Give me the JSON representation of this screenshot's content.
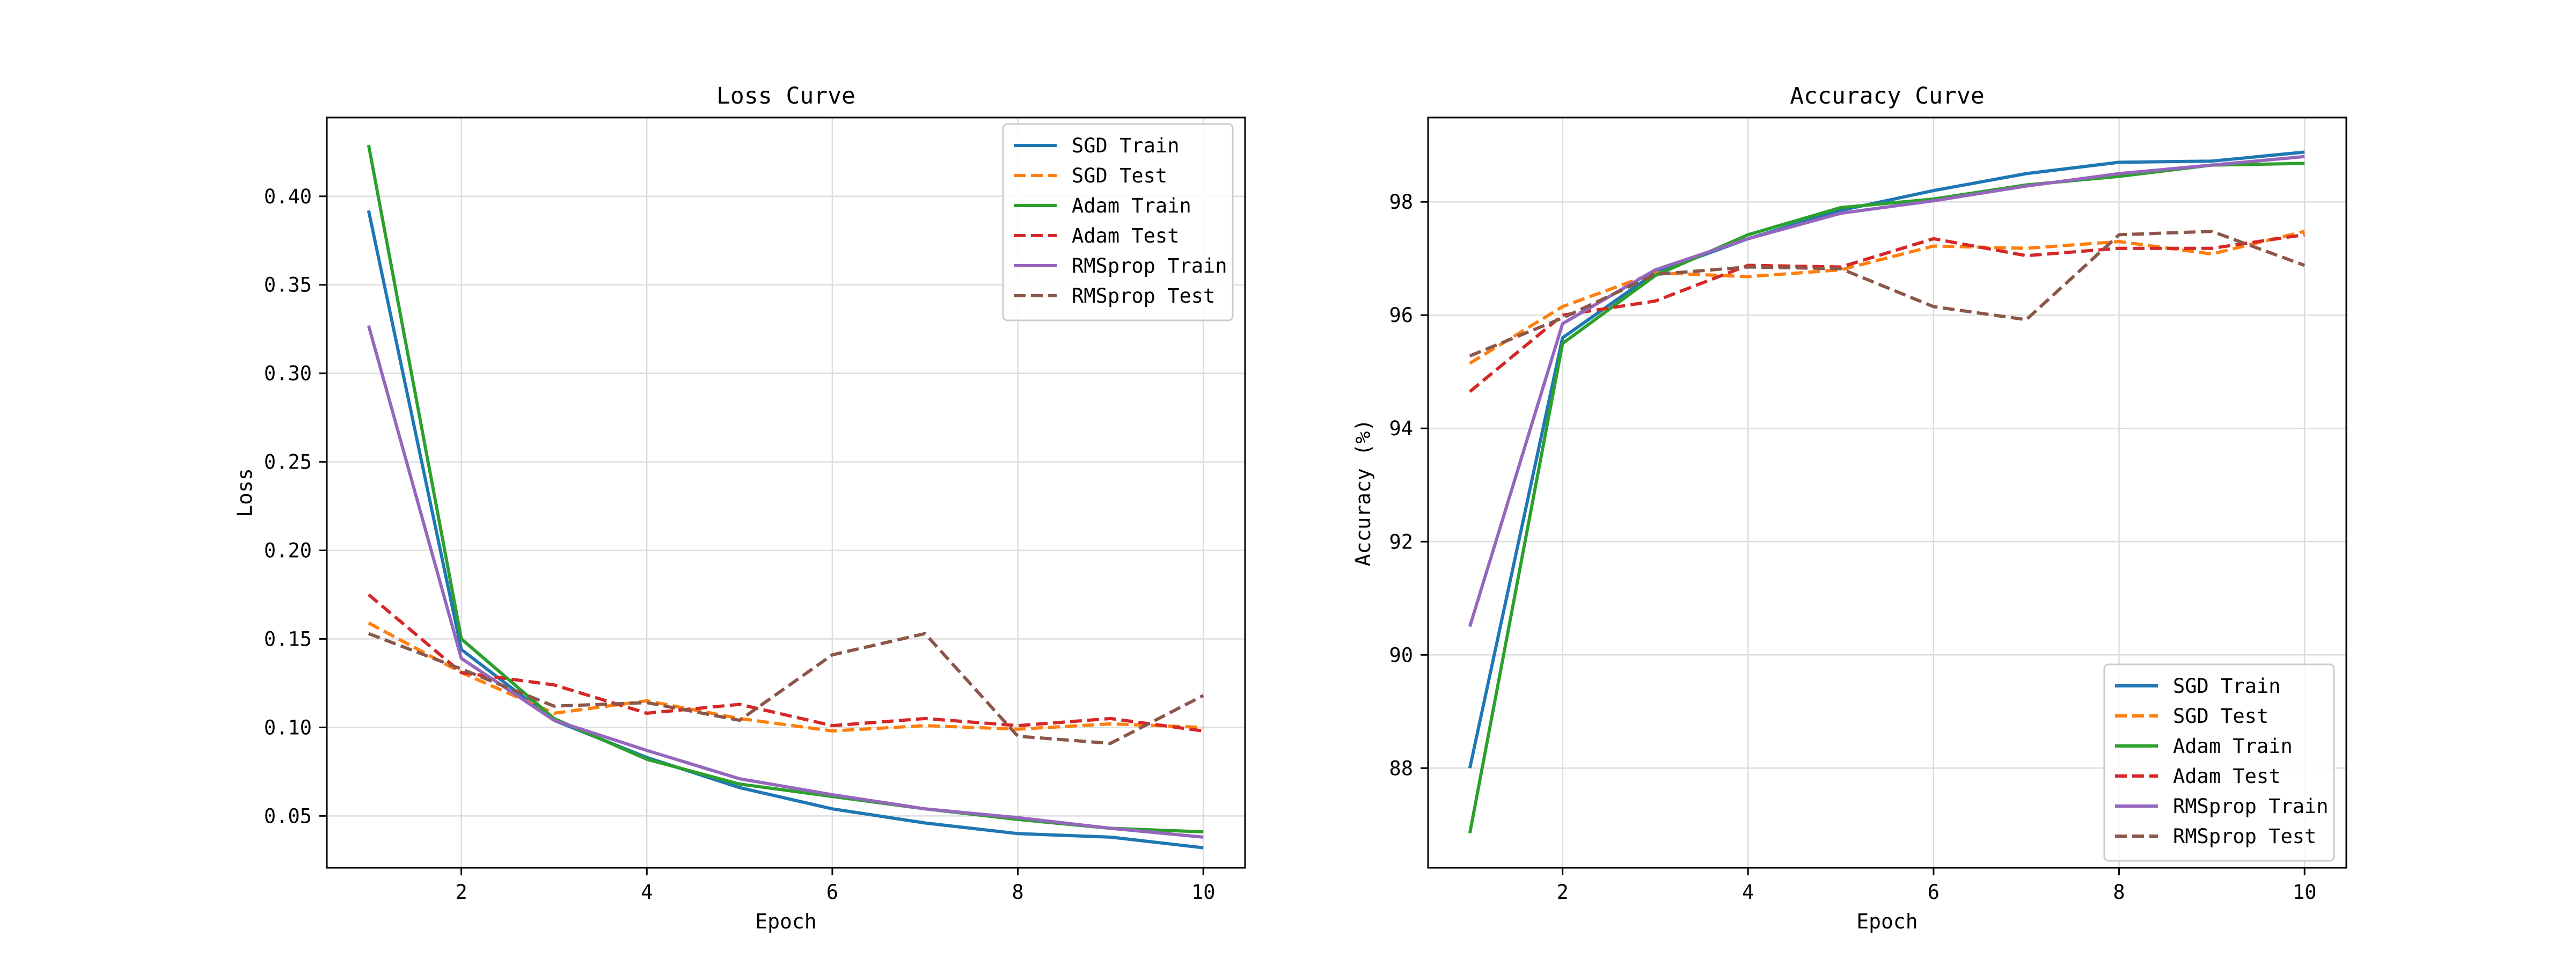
{
  "chart_data": [
    {
      "type": "line",
      "title": "Loss Curve",
      "xlabel": "Epoch",
      "ylabel": "Loss",
      "xlim": [
        0.55,
        10.45
      ],
      "ylim": [
        0.0207,
        0.4445
      ],
      "xticks": [
        2,
        4,
        6,
        8,
        10
      ],
      "xtick_labels": [
        "2",
        "4",
        "6",
        "8",
        "10"
      ],
      "yticks": [
        0.05,
        0.1,
        0.15,
        0.2,
        0.25,
        0.3,
        0.35,
        0.4
      ],
      "ytick_labels": [
        "0.05",
        "0.10",
        "0.15",
        "0.20",
        "0.25",
        "0.30",
        "0.35",
        "0.40"
      ],
      "grid": true,
      "legend_position": "top-right",
      "x": [
        1,
        2,
        3,
        4,
        5,
        6,
        7,
        8,
        9,
        10
      ],
      "series": [
        {
          "name": "SGD Train",
          "color": "#1f77b4",
          "style": "solid",
          "values": [
            0.392,
            0.144,
            0.104,
            0.083,
            0.066,
            0.054,
            0.046,
            0.04,
            0.038,
            0.032
          ]
        },
        {
          "name": "SGD Test",
          "color": "#ff7f0e",
          "style": "dashed",
          "values": [
            0.159,
            0.131,
            0.108,
            0.115,
            0.105,
            0.098,
            0.101,
            0.099,
            0.102,
            0.1
          ]
        },
        {
          "name": "Adam Train",
          "color": "#2ca02c",
          "style": "solid",
          "values": [
            0.429,
            0.15,
            0.105,
            0.082,
            0.068,
            0.061,
            0.054,
            0.048,
            0.043,
            0.041
          ]
        },
        {
          "name": "Adam Test",
          "color": "#d62728",
          "style": "dashed",
          "values": [
            0.175,
            0.131,
            0.124,
            0.108,
            0.113,
            0.101,
            0.105,
            0.101,
            0.105,
            0.098
          ]
        },
        {
          "name": "RMSprop Train",
          "color": "#9467bd",
          "style": "solid",
          "values": [
            0.327,
            0.139,
            0.104,
            0.087,
            0.071,
            0.062,
            0.054,
            0.049,
            0.043,
            0.038
          ]
        },
        {
          "name": "RMSprop Test",
          "color": "#8c564b",
          "style": "dashed",
          "values": [
            0.153,
            0.133,
            0.112,
            0.114,
            0.104,
            0.141,
            0.153,
            0.095,
            0.091,
            0.118
          ]
        }
      ]
    },
    {
      "type": "line",
      "title": "Accuracy Curve",
      "xlabel": "Epoch",
      "ylabel": "Accuracy (%)",
      "xlim": [
        0.55,
        10.45
      ],
      "ylim": [
        86.24,
        99.49
      ],
      "xticks": [
        2,
        4,
        6,
        8,
        10
      ],
      "xtick_labels": [
        "2",
        "4",
        "6",
        "8",
        "10"
      ],
      "yticks": [
        88,
        90,
        92,
        94,
        96,
        98
      ],
      "ytick_labels": [
        "88",
        "90",
        "92",
        "94",
        "96",
        "98"
      ],
      "grid": true,
      "legend_position": "bottom-right",
      "x": [
        1,
        2,
        3,
        4,
        5,
        6,
        7,
        8,
        9,
        10
      ],
      "series": [
        {
          "name": "SGD Train",
          "color": "#1f77b4",
          "style": "solid",
          "values": [
            88.0,
            95.6,
            96.75,
            97.35,
            97.85,
            98.2,
            98.5,
            98.7,
            98.72,
            98.88
          ]
        },
        {
          "name": "SGD Test",
          "color": "#ff7f0e",
          "style": "dashed",
          "values": [
            95.15,
            96.15,
            96.75,
            96.68,
            96.8,
            97.22,
            97.18,
            97.3,
            97.08,
            97.48
          ]
        },
        {
          "name": "Adam Train",
          "color": "#2ca02c",
          "style": "solid",
          "values": [
            86.85,
            95.5,
            96.7,
            97.42,
            97.9,
            98.05,
            98.3,
            98.45,
            98.65,
            98.68
          ]
        },
        {
          "name": "Adam Test",
          "color": "#d62728",
          "style": "dashed",
          "values": [
            94.65,
            96.0,
            96.25,
            96.88,
            96.85,
            97.35,
            97.05,
            97.18,
            97.18,
            97.42
          ]
        },
        {
          "name": "RMSprop Train",
          "color": "#9467bd",
          "style": "solid",
          "values": [
            90.5,
            95.85,
            96.8,
            97.35,
            97.8,
            98.02,
            98.28,
            98.5,
            98.65,
            98.8
          ]
        },
        {
          "name": "RMSprop Test",
          "color": "#8c564b",
          "style": "dashed",
          "values": [
            95.28,
            95.95,
            96.72,
            96.85,
            96.82,
            96.15,
            95.92,
            97.42,
            97.48,
            96.88
          ]
        }
      ]
    }
  ]
}
